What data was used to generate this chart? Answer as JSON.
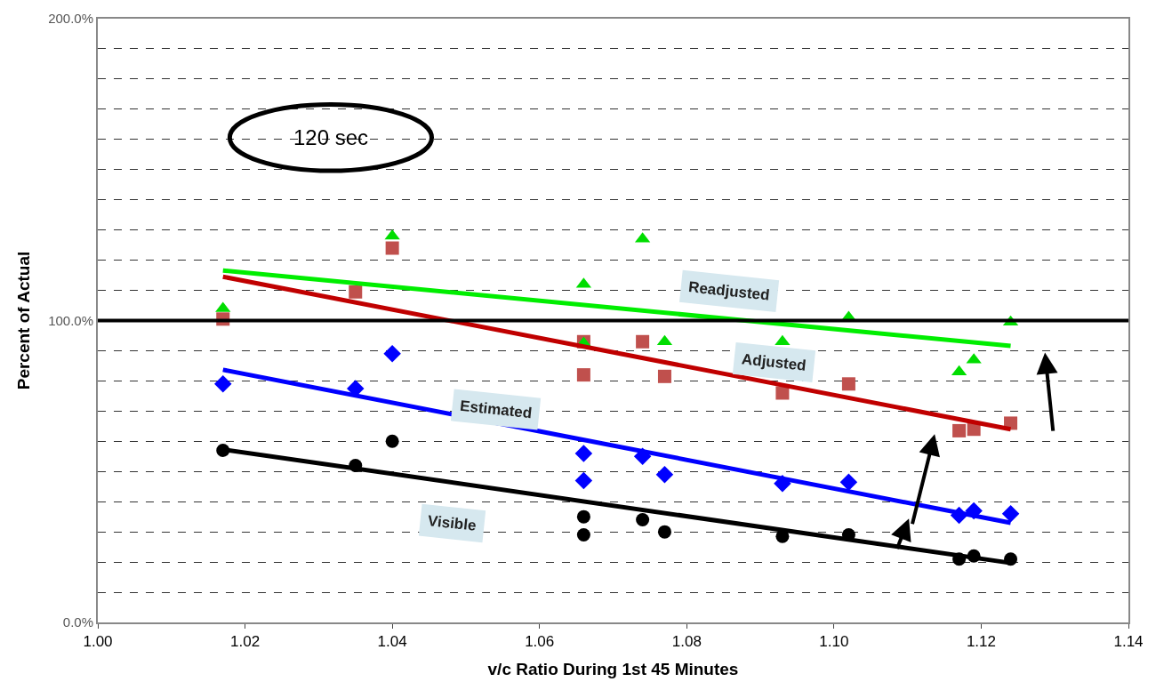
{
  "chart_data": {
    "type": "scatter",
    "xlabel": "v/c Ratio During 1st 45 Minutes",
    "ylabel": "Percent of Actual",
    "x": [
      1.017,
      1.035,
      1.04,
      1.066,
      1.066,
      1.074,
      1.077,
      1.093,
      1.102,
      1.117,
      1.119,
      1.124
    ],
    "series": [
      {
        "color": "#000000",
        "marker": "circle",
        "values": [
          57,
          52,
          60,
          35,
          29,
          34,
          30,
          28.5,
          29,
          21,
          22,
          21
        ]
      },
      {
        "color": "#0000ff",
        "marker": "diamond",
        "values": [
          79,
          77.5,
          89,
          56,
          47,
          55,
          49,
          46,
          46.5,
          35.5,
          37,
          36
        ]
      },
      {
        "color": "#c0504d",
        "marker": "square",
        "values": [
          100.5,
          109.5,
          124,
          93,
          82,
          93,
          81.5,
          76,
          79,
          63.5,
          64,
          66
        ]
      },
      {
        "color": "#00dd00",
        "marker": "triangle",
        "values": [
          104,
          null,
          128,
          112,
          92.5,
          127,
          93,
          93,
          101,
          83,
          87,
          99.5
        ]
      },
      {
        "type": "line",
        "color": "#00ee00",
        "values": [
          116.6,
          null,
          null,
          null,
          null,
          null,
          null,
          null,
          null,
          null,
          null,
          91.6
        ]
      },
      {
        "type": "line",
        "color": "#c00000",
        "values": [
          114.5,
          null,
          null,
          null,
          null,
          null,
          null,
          null,
          null,
          null,
          null,
          64
        ]
      },
      {
        "type": "line",
        "color": "#0000ff",
        "values": [
          83.7,
          null,
          null,
          null,
          null,
          null,
          null,
          null,
          null,
          null,
          null,
          33
        ]
      },
      {
        "type": "line",
        "color": "#000000",
        "values": [
          57.3,
          null,
          null,
          null,
          null,
          null,
          null,
          null,
          null,
          null,
          null,
          19.7
        ]
      }
    ],
    "xlim": [
      1.0,
      1.14
    ],
    "xticks": [
      {
        "value": 1.0,
        "label": "1.00"
      },
      {
        "value": 1.02,
        "label": "1.02"
      },
      {
        "value": 1.04,
        "label": "1.04"
      },
      {
        "value": 1.06,
        "label": "1.06"
      },
      {
        "value": 1.08,
        "label": "1.08"
      },
      {
        "value": 1.1,
        "label": "1.10"
      },
      {
        "value": 1.12,
        "label": "1.12"
      },
      {
        "value": 1.14,
        "label": "1.14"
      }
    ],
    "ylim": [
      0,
      200
    ],
    "yticks": [
      {
        "value": 0,
        "label": "0.0%"
      },
      {
        "value": 10,
        "label": null
      },
      {
        "value": 20,
        "label": null
      },
      {
        "value": 30,
        "label": null
      },
      {
        "value": 40,
        "label": null
      },
      {
        "value": 50,
        "label": null
      },
      {
        "value": 60,
        "label": null
      },
      {
        "value": 70,
        "label": null
      },
      {
        "value": 80,
        "label": null
      },
      {
        "value": 90,
        "label": null
      },
      {
        "value": 100,
        "label": "100.0%"
      },
      {
        "value": 110,
        "label": null
      },
      {
        "value": 120,
        "label": null
      },
      {
        "value": 130,
        "label": null
      },
      {
        "value": 140,
        "label": null
      },
      {
        "value": 150,
        "label": null
      },
      {
        "value": 160,
        "label": null
      },
      {
        "value": 170,
        "label": null
      },
      {
        "value": 180,
        "label": null
      },
      {
        "value": 190,
        "label": null
      },
      {
        "value": 200,
        "label": "200.0%"
      }
    ],
    "grid": "y",
    "ref_lines": [
      {
        "axis": "y",
        "value": 100,
        "color": "#000000",
        "line_style": "solid"
      }
    ],
    "annotations": [
      "120 sec",
      "Readjusted",
      "Adjusted",
      "Estimated",
      "Visible"
    ]
  }
}
